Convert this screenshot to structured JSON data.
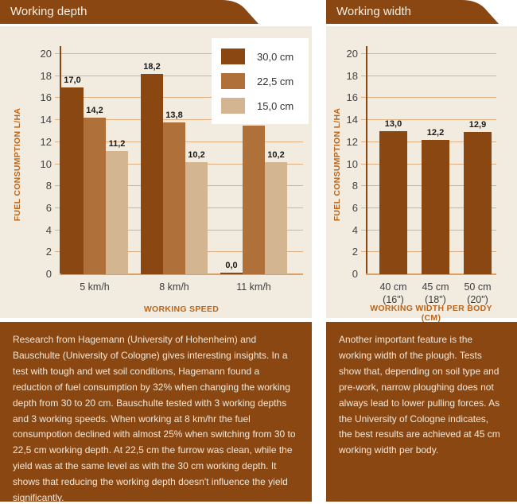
{
  "colors": {
    "page-bg": "#ffffff",
    "brown": "#8a4712",
    "card-bg": "#f2ebdf",
    "grid": "#e0b083",
    "baseline": "#d9a368",
    "axis-label": "#b9661c",
    "tick-text": "#444444",
    "value-text": "#1a1a1a",
    "cat-text": "#3d3d3d",
    "header-text": "#f7f0e4",
    "paragraph-text": "#f3e9da",
    "legend-bg": "#ffffff",
    "legend-text": "#333333",
    "bar-dark": "#8a4712",
    "bar-medium": "#b0703a",
    "bar-light": "#d4b591"
  },
  "chart_data": [
    {
      "type": "bar",
      "title": "Working depth",
      "categories": [
        "5 km/h",
        "8 km/h",
        "11 km/h"
      ],
      "series": [
        {
          "name": "30,0 cm",
          "color": "#8a4712",
          "values": [
            17.0,
            18.2,
            0.0
          ]
        },
        {
          "name": "22,5 cm",
          "color": "#b0703a",
          "values": [
            14.2,
            13.8,
            13.5
          ]
        },
        {
          "name": "15,0 cm",
          "color": "#d4b591",
          "values": [
            11.2,
            10.2,
            10.2
          ]
        }
      ],
      "xlabel": "WORKING SPEED",
      "ylabel": "FUEL CONSUMPTION L/HA",
      "ylim": [
        0,
        20
      ],
      "ytick_step": 2,
      "grid": true,
      "legend_position": "top-right",
      "value_label_format": "comma-decimal-1"
    },
    {
      "type": "bar",
      "title": "Working width",
      "categories": [
        [
          "40 cm",
          "(16\")"
        ],
        [
          "45 cm",
          "(18\")"
        ],
        [
          "50 cm",
          "(20\")"
        ]
      ],
      "series": [
        {
          "name": "",
          "color": "#8a4712",
          "values": [
            13.0,
            12.2,
            12.9
          ]
        }
      ],
      "xlabel": "WORKING WIDTH PER BODY (CM)",
      "ylabel": "FUEL CONSUMPTION L/HA",
      "ylim": [
        0,
        20
      ],
      "ytick_step": 2,
      "grid": true,
      "legend_position": "none",
      "value_label_format": "comma-decimal-1"
    }
  ],
  "panels": [
    {
      "paragraph": "Research from Hagemann (University of Hohenheim) and Bauschulte (University of Cologne) gives interesting insights. In a test with tough and wet soil conditions, Hagemann found a reduction of fuel consumption by 32% when changing the working depth from 30 to 20 cm. Bauschulte tested with 3 working depths and 3 working speeds. When working at 8 km/hr the fuel consumpotion declined with almost 25% when switching from 30 to 22,5 cm working depth. At 22,5 cm the furrow was clean, while the yield was at the same level as with the 30 cm working depth. It shows that reducing the working depth doesn't influence the yield significantly."
    },
    {
      "paragraph": "Another important feature is the working width of the plough. Tests show that, depending on soil type and pre-work, narrow ploughing does not always lead to lower pulling forces. As the University of Cologne indicates, the best results are achieved at 45 cm working width per body."
    }
  ]
}
